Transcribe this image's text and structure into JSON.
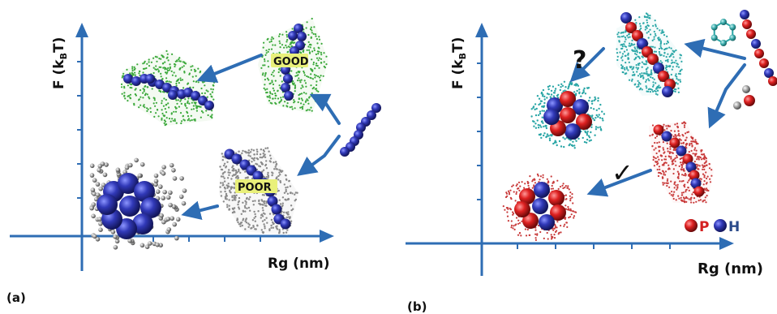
{
  "panel_a": {
    "label": "(a)",
    "y_axis_label": "F (k",
    "y_axis_sub": "B",
    "y_axis_tail": "T)",
    "x_axis_label": "Rg (nm)",
    "good_label": "GOOD",
    "poor_label": "POOR"
  },
  "panel_b": {
    "label": "(b)",
    "y_axis_label": "F (k",
    "y_axis_sub": "B",
    "y_axis_tail": "T)",
    "x_axis_label": "Rg (nm)",
    "question_mark": "?",
    "check_mark": "✓",
    "legend_p": "P",
    "legend_h": "H"
  },
  "colors": {
    "axis": "#2e6db4",
    "bead_blue": "#2a2f9c",
    "bead_red": "#d42020",
    "good_solvent": "#3aa83a",
    "poor_solvent": "#8a8a8a",
    "teal_solvent": "#2aa6a6",
    "red_solvent": "#c83a3a",
    "label_bg": "#e9f07a"
  }
}
